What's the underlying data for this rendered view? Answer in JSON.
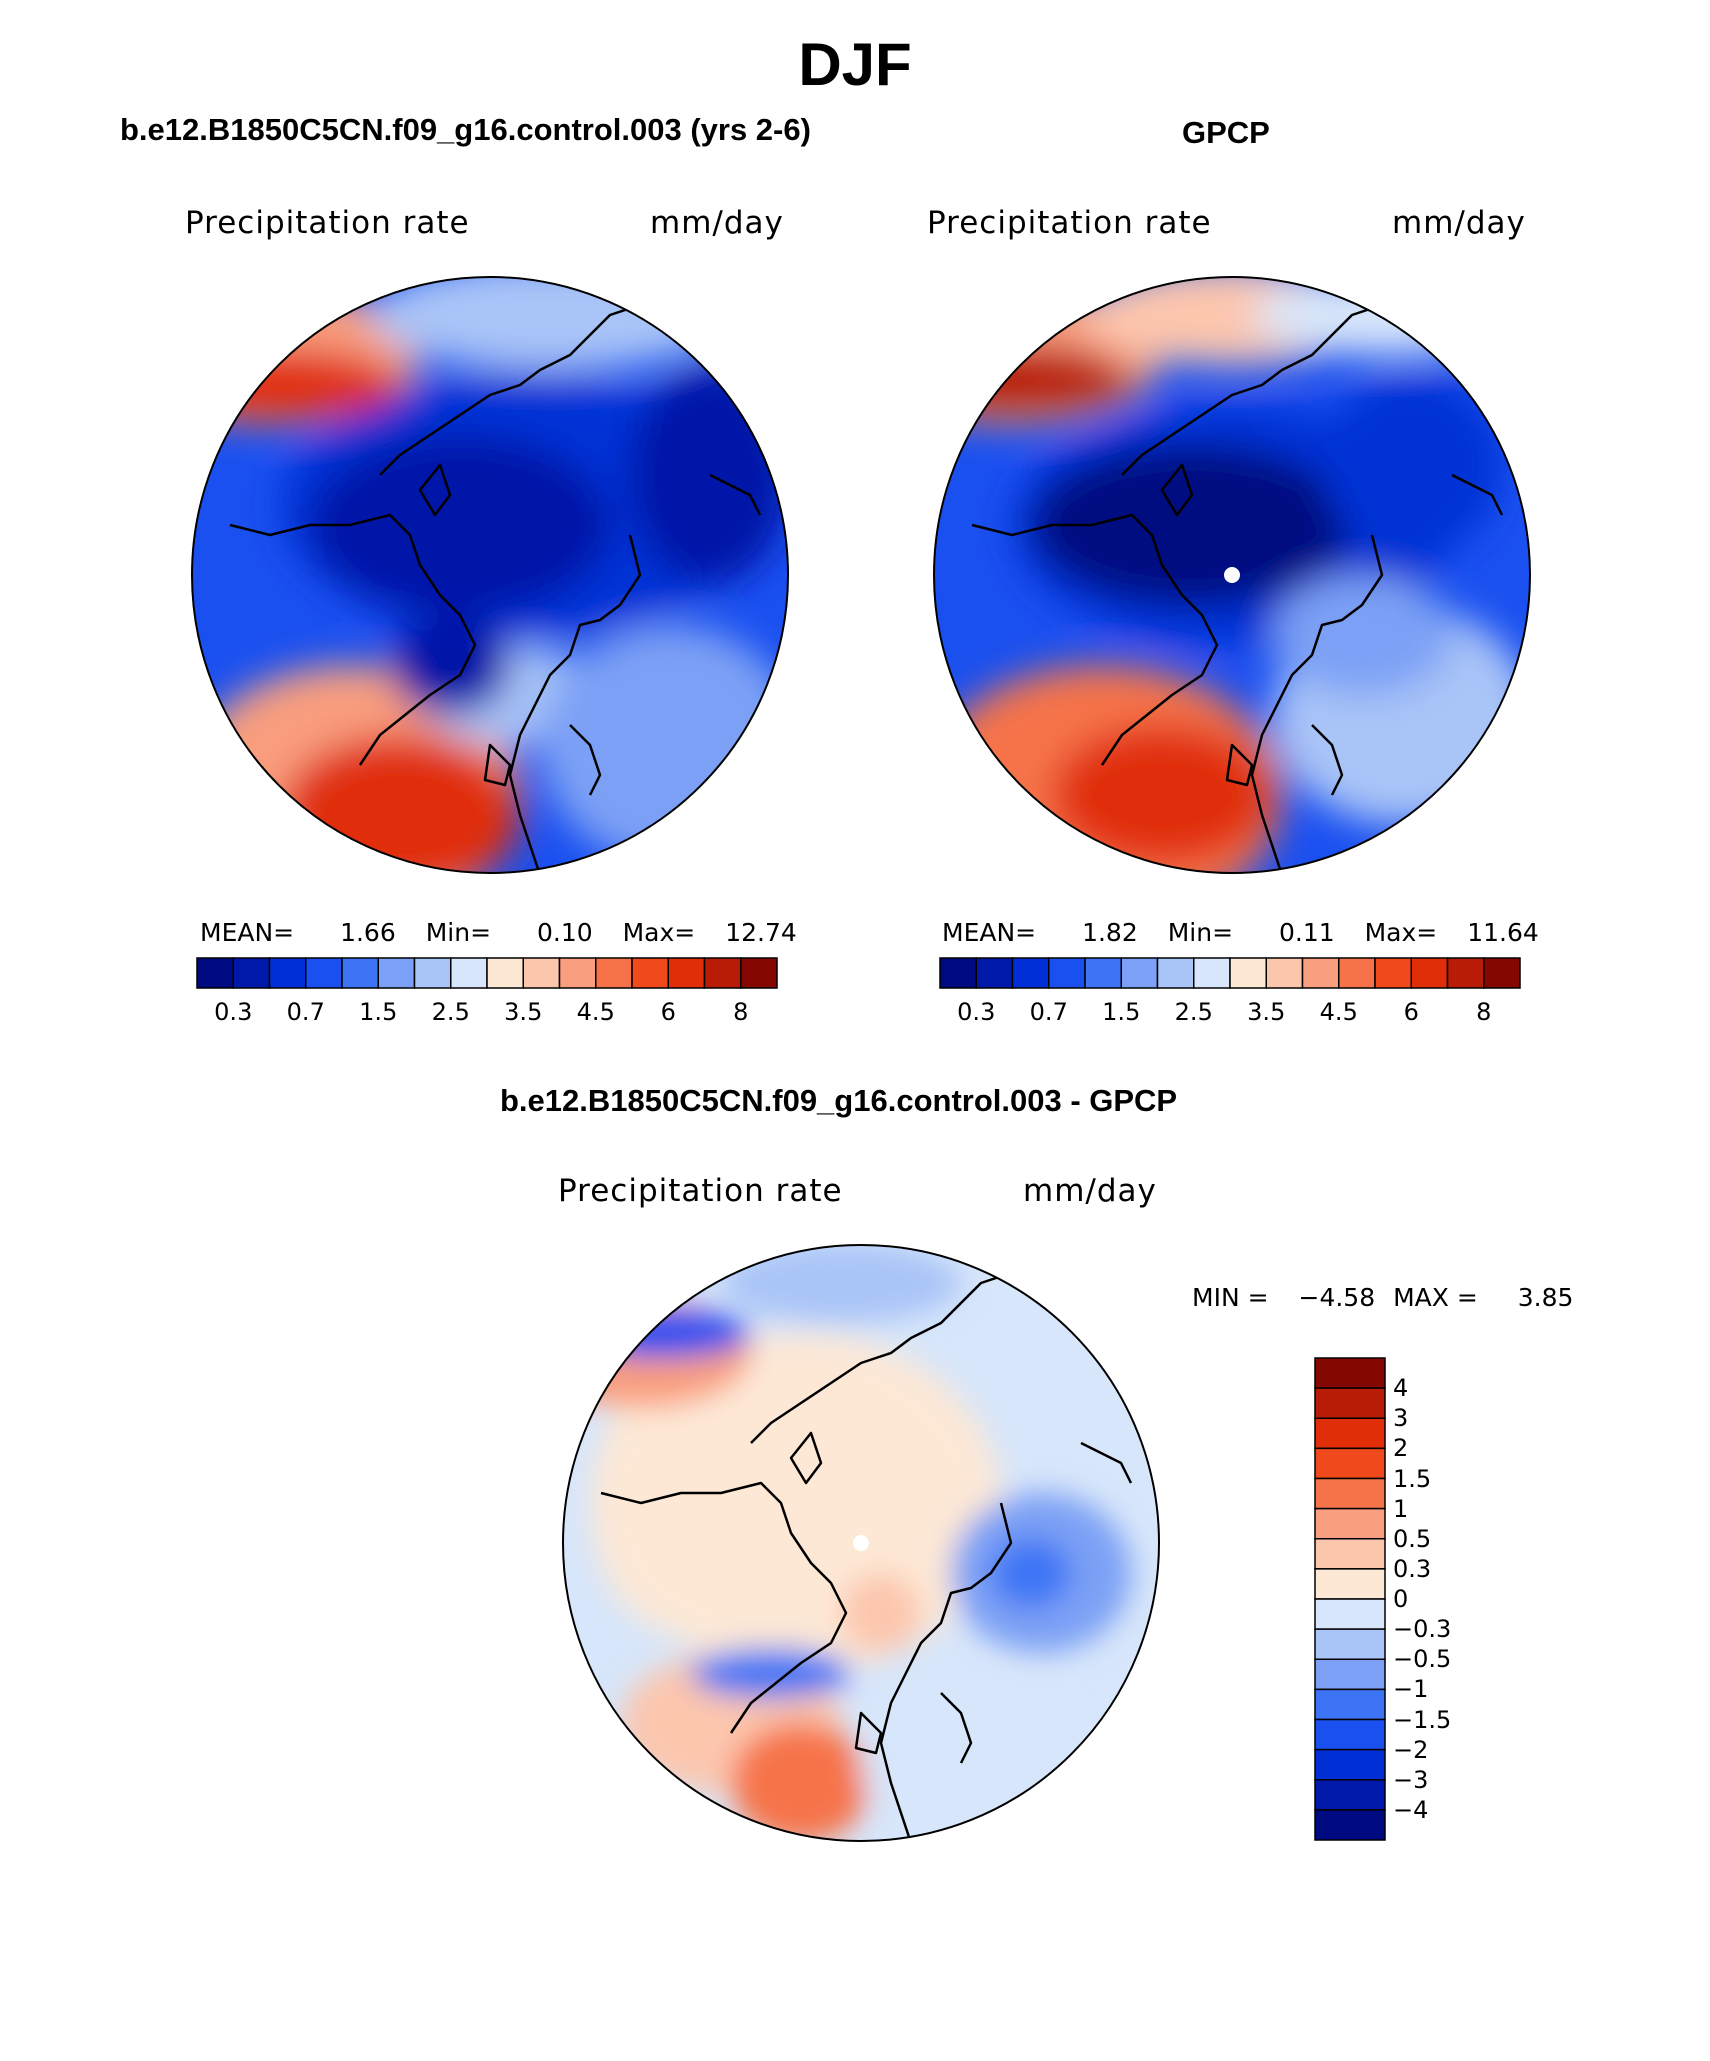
{
  "title": "DJF",
  "panels": [
    {
      "id": "model",
      "title": "b.e12.B1850C5CN.f09_g16.control.003 (yrs 2-6)",
      "variable": "Precipitation rate",
      "units": "mm/day",
      "stats": {
        "mean_label": "MEAN=",
        "mean": "1.66",
        "min_label": "Min=",
        "min": "0.10",
        "max_label": "Max=",
        "max": "12.74"
      }
    },
    {
      "id": "obs",
      "title": "GPCP",
      "variable": "Precipitation rate",
      "units": "mm/day",
      "stats": {
        "mean_label": "MEAN=",
        "mean": "1.82",
        "min_label": "Min=",
        "min": "0.11",
        "max_label": "Max=",
        "max": "11.64"
      }
    },
    {
      "id": "diff",
      "title": "b.e12.B1850C5CN.f09_g16.control.003 - GPCP",
      "variable": "Precipitation rate",
      "units": "mm/day",
      "stats": {
        "min_label": "MIN =",
        "min": "−4.58",
        "max_label": "MAX =",
        "max": "3.85"
      }
    }
  ],
  "colorbar_main": {
    "levels": [
      "0.2",
      "0.3",
      "0.5",
      "0.7",
      "1",
      "1.5",
      "2",
      "2.5",
      "3",
      "3.5",
      "4",
      "4.5",
      "5",
      "6",
      "7",
      "8"
    ],
    "tick_labels": [
      "0.3",
      "0.7",
      "1.5",
      "2.5",
      "3.5",
      "4.5",
      "6",
      "8"
    ],
    "colors": [
      "#000a80",
      "#0019a8",
      "#0030d5",
      "#1a50f0",
      "#3d74f5",
      "#7ba0f5",
      "#a9c4f7",
      "#d7e6fa",
      "#fde8d6",
      "#fcc6ad",
      "#f99e7e",
      "#f67349",
      "#f04a1c",
      "#e02e08",
      "#b81c06",
      "#840702"
    ]
  },
  "colorbar_diff": {
    "labels": [
      "4",
      "3",
      "2",
      "1.5",
      "1",
      "0.5",
      "0.3",
      "0",
      "−0.3",
      "−0.5",
      "−1",
      "−1.5",
      "−2",
      "−3",
      "−4"
    ],
    "colors": [
      "#840702",
      "#b81c06",
      "#e02e08",
      "#f04a1c",
      "#f67349",
      "#f99e7e",
      "#fcc6ad",
      "#fde8d6",
      "#d7e6fa",
      "#a9c4f7",
      "#7ba0f5",
      "#3d74f5",
      "#1a50f0",
      "#0030d5",
      "#0019a8",
      "#000a80"
    ]
  }
}
